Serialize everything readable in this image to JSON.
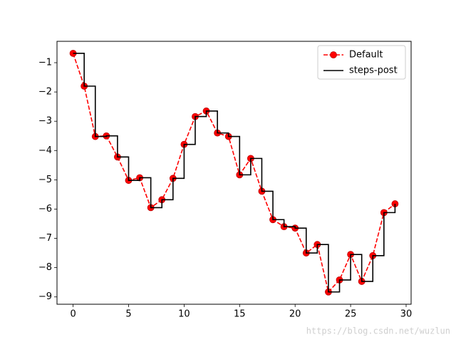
{
  "chart_data": {
    "type": "line",
    "x": [
      0,
      1,
      2,
      3,
      4,
      5,
      6,
      7,
      8,
      9,
      10,
      11,
      12,
      13,
      14,
      15,
      16,
      17,
      18,
      19,
      20,
      21,
      22,
      23,
      24,
      25,
      26,
      27,
      28,
      29
    ],
    "series": [
      {
        "name": "Default",
        "color": "red",
        "linestyle": "dashed",
        "marker": "circle",
        "values": [
          -0.68,
          -1.8,
          -3.52,
          -3.5,
          -4.22,
          -5.02,
          -4.93,
          -5.95,
          -5.68,
          -4.95,
          -3.79,
          -2.84,
          -2.65,
          -3.4,
          -3.52,
          -4.83,
          -4.27,
          -5.39,
          -6.36,
          -6.6,
          -6.65,
          -7.5,
          -7.21,
          -8.83,
          -8.42,
          -7.55,
          -8.47,
          -7.59,
          -6.12,
          -5.82
        ]
      },
      {
        "name": "steps-post",
        "color": "black",
        "linestyle": "solid",
        "drawstyle": "steps-post",
        "values": [
          -0.68,
          -1.8,
          -3.52,
          -3.5,
          -4.22,
          -5.02,
          -4.93,
          -5.95,
          -5.68,
          -4.95,
          -3.79,
          -2.84,
          -2.65,
          -3.4,
          -3.52,
          -4.83,
          -4.27,
          -5.39,
          -6.36,
          -6.6,
          -6.65,
          -7.5,
          -7.21,
          -8.83,
          -8.42,
          -7.55,
          -8.47,
          -7.59,
          -6.12,
          -5.82
        ]
      }
    ],
    "xlim": [
      -1.45,
      30.45
    ],
    "ylim": [
      -9.25,
      -0.27
    ],
    "xticks": [
      0,
      5,
      10,
      15,
      20,
      25,
      30
    ],
    "yticks": [
      {
        "value": -1,
        "label": "−1"
      },
      {
        "value": -2,
        "label": "−2"
      },
      {
        "value": -3,
        "label": "−3"
      },
      {
        "value": -4,
        "label": "−4"
      },
      {
        "value": -5,
        "label": "−5"
      },
      {
        "value": -6,
        "label": "−6"
      },
      {
        "value": -7,
        "label": "−7"
      },
      {
        "value": -8,
        "label": "−8"
      },
      {
        "value": -9,
        "label": "−9"
      }
    ],
    "legend": "upper right",
    "watermark": "https://blog.csdn.net/wuzlun"
  }
}
